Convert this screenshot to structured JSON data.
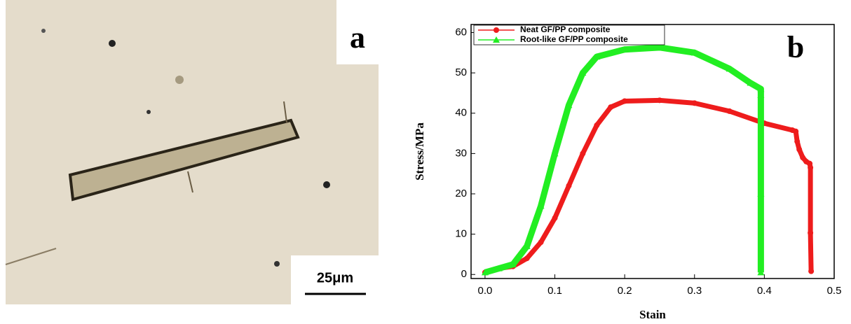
{
  "panel_a": {
    "label": "a",
    "scale_bar": "25μm"
  },
  "chart_data": {
    "type": "line",
    "panel_label": "b",
    "x_label": "Stain",
    "y_label": "Stress/MPa",
    "xlim": [
      -0.02,
      0.5
    ],
    "ylim": [
      -1,
      62
    ],
    "xticks": [
      {
        "value": 0,
        "label": "0.0"
      },
      0.1,
      0.2,
      0.3,
      0.4,
      0.5
    ],
    "yticks": [
      0,
      10,
      20,
      30,
      40,
      50,
      60
    ],
    "legend": "top-left",
    "series": [
      {
        "name": "Neat GF/PP composite",
        "color": "#ee1c1c",
        "marker": "circle",
        "x": [
          0,
          0.02,
          0.04,
          0.06,
          0.08,
          0.1,
          0.12,
          0.14,
          0.16,
          0.18,
          0.2,
          0.25,
          0.3,
          0.35,
          0.4,
          0.44,
          0.445,
          0.447,
          0.45,
          0.455,
          0.46,
          0.465,
          0.466,
          0.466,
          0.467
        ],
        "values": [
          0.5,
          1.5,
          2,
          4,
          8,
          14,
          22,
          30,
          37,
          41.5,
          43,
          43.2,
          42.5,
          40.5,
          37.5,
          35.8,
          35.5,
          33,
          31,
          29,
          28,
          27.5,
          26.5,
          10.3,
          0.8
        ]
      },
      {
        "name": "Root-like GF/PP composite",
        "color": "#22ee22",
        "marker": "triangle",
        "x": [
          0,
          0.02,
          0.04,
          0.06,
          0.08,
          0.1,
          0.12,
          0.14,
          0.16,
          0.2,
          0.25,
          0.3,
          0.35,
          0.38,
          0.395,
          0.395,
          0.395,
          0.395
        ],
        "values": [
          0.5,
          1.5,
          2.5,
          7,
          17,
          30,
          42,
          50,
          54,
          55.8,
          56.3,
          55,
          51,
          47.5,
          46,
          44.5,
          20,
          0.5
        ]
      }
    ]
  }
}
